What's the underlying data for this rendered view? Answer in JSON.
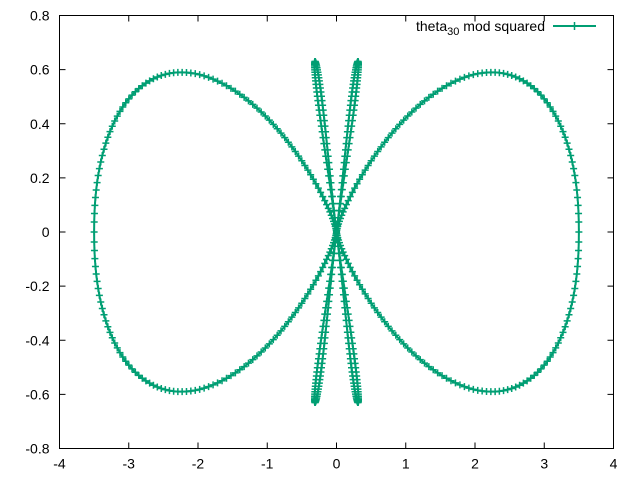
{
  "chart_data": {
    "type": "line",
    "title": "",
    "xlabel": "",
    "ylabel": "",
    "xlim": [
      -4,
      4
    ],
    "ylim": [
      -0.8,
      0.8
    ],
    "x_ticks": [
      "-4",
      "-3",
      "-2",
      "-1",
      "0",
      "1",
      "2",
      "3",
      "4"
    ],
    "y_ticks": [
      "-0.8",
      "-0.6",
      "-0.4",
      "-0.2",
      "0",
      "0.2",
      "0.4",
      "0.6",
      "0.8"
    ],
    "grid": false,
    "legend_position": "top-right",
    "legend": {
      "base": "theta",
      "subscript": "30",
      "rest": " mod squared"
    },
    "point_marker": "plus",
    "line_color": "#009e73",
    "series": [
      {
        "name": "theta30 mod squared",
        "curve": "two outer lobes and two narrow inner loops, all crossing at the origin",
        "outer_lobes": {
          "x_extent": [
            -3.5,
            3.5
          ],
          "y_extent": [
            -0.59,
            0.59
          ],
          "peak_x": [
            -2.15,
            2.15
          ],
          "peak_y": 0.59
        },
        "inner_loops": {
          "center_x": [
            -0.31,
            0.31
          ],
          "y_extent": [
            -0.63,
            0.63
          ],
          "half_width": 0.08
        }
      }
    ]
  }
}
